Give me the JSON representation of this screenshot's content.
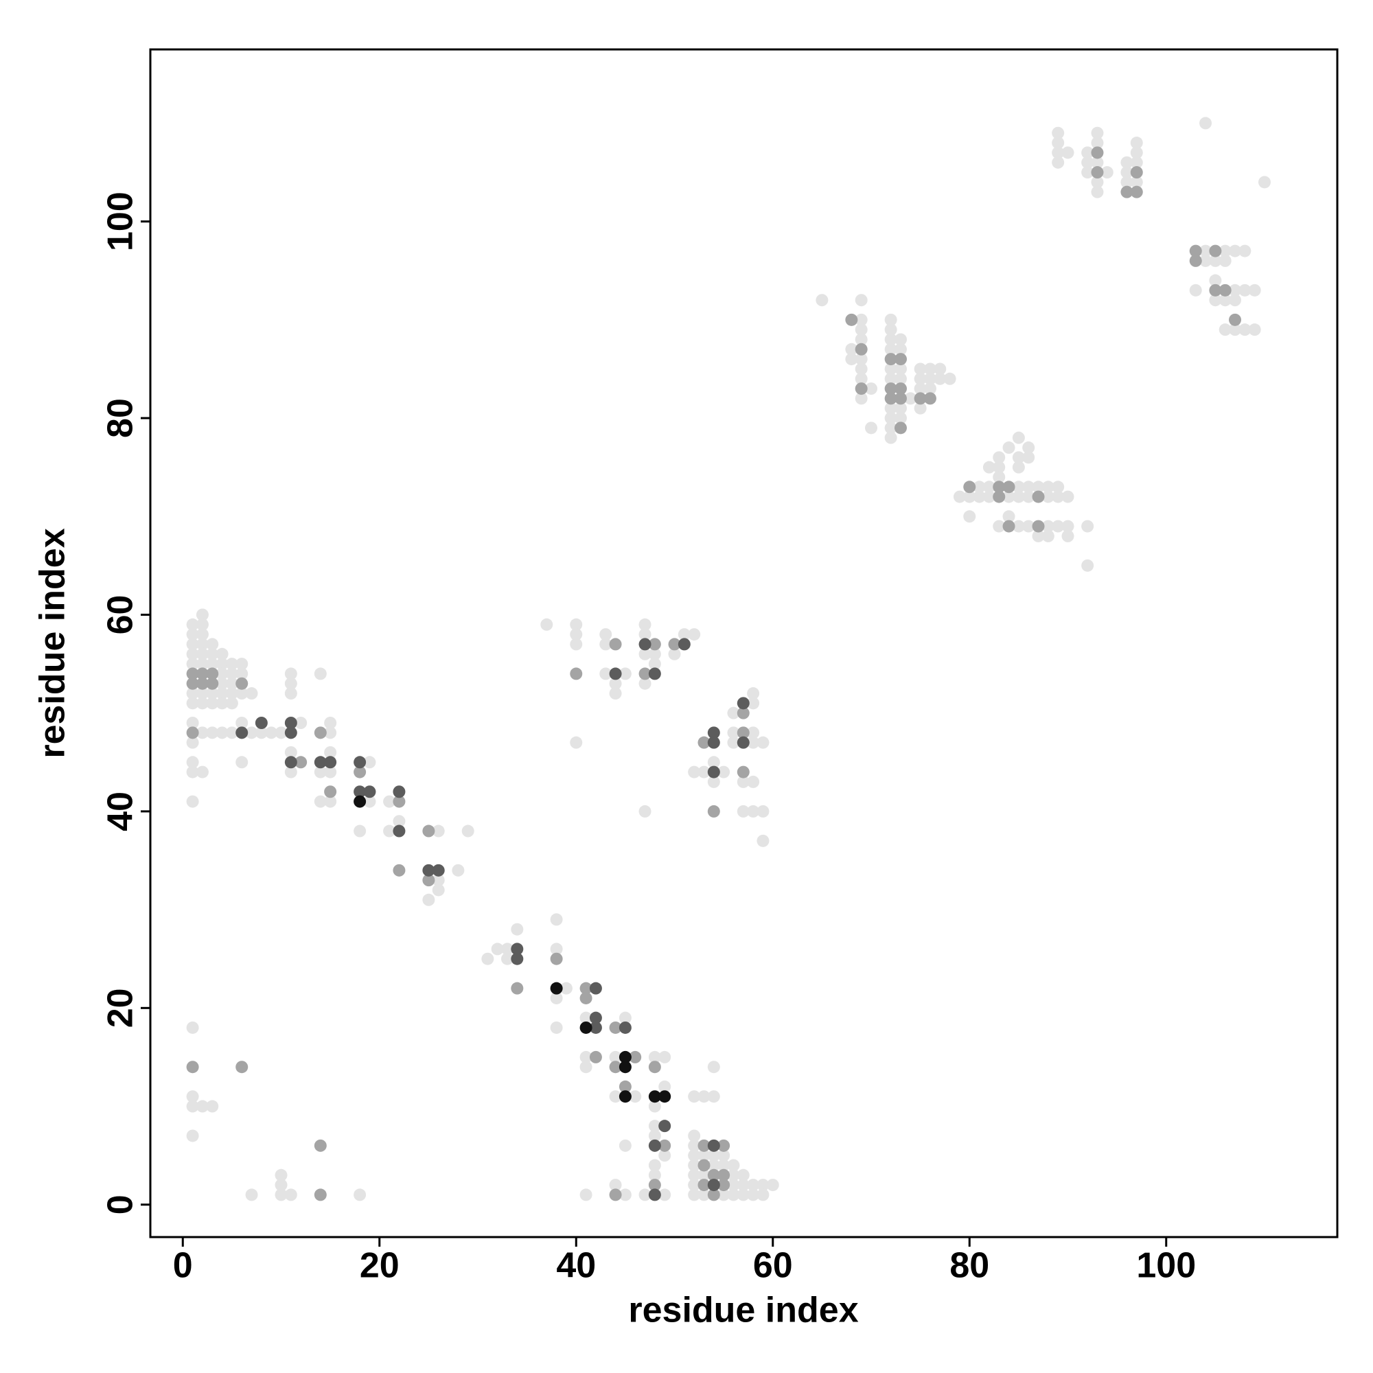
{
  "chart_data": {
    "type": "scatter",
    "x_label": "residue index",
    "y_label": "residue index",
    "xlim": [
      -3.3,
      117.4
    ],
    "ylim": [
      -3.3,
      117.5
    ],
    "xticks": [
      0,
      20,
      40,
      60,
      80,
      100
    ],
    "yticks": [
      0,
      20,
      40,
      60,
      80,
      100
    ],
    "series": [
      {
        "color": "#e3e3e3",
        "x": [
          1,
          1,
          1,
          1,
          1,
          1,
          1,
          1,
          1,
          1,
          1,
          1,
          2,
          2,
          2,
          2,
          2,
          2,
          2,
          2,
          2,
          2,
          3,
          3,
          3,
          3,
          3,
          3,
          4,
          4,
          4,
          4,
          4,
          4,
          4,
          5,
          5,
          5,
          5,
          5,
          5,
          6,
          6,
          6,
          6,
          6,
          7,
          7,
          8,
          9,
          10,
          11,
          11,
          11,
          11,
          11,
          12,
          14,
          14,
          14,
          15,
          15,
          15,
          15,
          15,
          18,
          19,
          19,
          21,
          21,
          22,
          25,
          26,
          26,
          26,
          28,
          29,
          31,
          32,
          33,
          33,
          34,
          38,
          38,
          38,
          38,
          39,
          41,
          41,
          41,
          44,
          44,
          45,
          46,
          48,
          48,
          49,
          49,
          48,
          48,
          49,
          52,
          52,
          52,
          52,
          52,
          52,
          52,
          53,
          53,
          53,
          54,
          54,
          55,
          55,
          55,
          56,
          56,
          56,
          56,
          57,
          57,
          57,
          58,
          58,
          59,
          59,
          60,
          52,
          53,
          54,
          54,
          48,
          48,
          47,
          49,
          44,
          45,
          45,
          41,
          1,
          1,
          1,
          2,
          3,
          1,
          7,
          10,
          10,
          10,
          11,
          18,
          37,
          40,
          40,
          40,
          40,
          43,
          43,
          43,
          44,
          44,
          45,
          47,
          47,
          47,
          47,
          48,
          48,
          50,
          51,
          52,
          47,
          52,
          53,
          54,
          54,
          56,
          56,
          56,
          55,
          57,
          57,
          58,
          58,
          58,
          58,
          58,
          58,
          59,
          59,
          59,
          65,
          68,
          68,
          69,
          69,
          69,
          69,
          69,
          69,
          69,
          69,
          70,
          70,
          72,
          72,
          72,
          72,
          72,
          72,
          72,
          72,
          72,
          72,
          73,
          73,
          73,
          73,
          73,
          73,
          74,
          75,
          75,
          75,
          75,
          76,
          76,
          76,
          77,
          77,
          78,
          79,
          80,
          80,
          81,
          81,
          82,
          82,
          82,
          83,
          83,
          83,
          83,
          84,
          84,
          84,
          85,
          85,
          85,
          85,
          85,
          85,
          86,
          86,
          86,
          86,
          86,
          87,
          87,
          88,
          88,
          88,
          88,
          89,
          89,
          89,
          90,
          90,
          90,
          92,
          92,
          89,
          89,
          89,
          89,
          90,
          92,
          92,
          92,
          93,
          93,
          93,
          93,
          93,
          94,
          96,
          96,
          96,
          97,
          97,
          97,
          97,
          104,
          110,
          103,
          104,
          104,
          105,
          105,
          105,
          106,
          106,
          106,
          106,
          107,
          107,
          107,
          107,
          108,
          108,
          108,
          109,
          109
        ],
        "y": [
          59,
          58,
          57,
          56,
          55,
          52,
          51,
          49,
          47,
          45,
          44,
          41,
          60,
          59,
          58,
          57,
          56,
          55,
          52,
          51,
          48,
          44,
          57,
          56,
          55,
          52,
          51,
          48,
          56,
          55,
          54,
          53,
          52,
          51,
          48,
          55,
          54,
          53,
          52,
          51,
          48,
          55,
          54,
          52,
          49,
          45,
          52,
          48,
          48,
          48,
          48,
          54,
          53,
          52,
          46,
          44,
          49,
          54,
          44,
          41,
          49,
          48,
          46,
          44,
          41,
          38,
          45,
          41,
          41,
          38,
          39,
          31,
          38,
          33,
          32,
          34,
          38,
          25,
          26,
          26,
          25,
          28,
          29,
          26,
          21,
          18,
          22,
          19,
          15,
          14,
          15,
          11,
          19,
          11,
          15,
          10,
          15,
          12,
          8,
          7,
          5,
          7,
          6,
          5,
          4,
          3,
          2,
          1,
          5,
          3,
          1,
          5,
          4,
          5,
          4,
          1,
          4,
          3,
          2,
          1,
          3,
          2,
          1,
          2,
          1,
          2,
          1,
          2,
          11,
          11,
          11,
          14,
          4,
          3,
          1,
          1,
          2,
          1,
          6,
          1,
          18,
          11,
          10,
          10,
          10,
          7,
          1,
          3,
          2,
          1,
          1,
          1,
          59,
          59,
          58,
          57,
          47,
          58,
          57,
          54,
          53,
          52,
          54,
          59,
          58,
          56,
          53,
          56,
          55,
          56,
          58,
          58,
          40,
          44,
          44,
          45,
          43,
          48,
          47,
          50,
          44,
          43,
          40,
          52,
          51,
          48,
          47,
          43,
          40,
          47,
          40,
          37,
          92,
          87,
          86,
          92,
          90,
          89,
          88,
          86,
          85,
          84,
          82,
          83,
          79,
          90,
          89,
          88,
          87,
          85,
          84,
          81,
          80,
          79,
          78,
          88,
          87,
          85,
          84,
          81,
          80,
          82,
          85,
          84,
          83,
          81,
          85,
          84,
          83,
          85,
          84,
          84,
          72,
          72,
          70,
          73,
          72,
          75,
          73,
          72,
          76,
          75,
          74,
          69,
          77,
          72,
          70,
          78,
          76,
          75,
          73,
          72,
          69,
          77,
          76,
          73,
          72,
          69,
          73,
          68,
          73,
          72,
          69,
          68,
          73,
          72,
          69,
          72,
          69,
          68,
          69,
          65,
          109,
          108,
          107,
          106,
          107,
          107,
          106,
          105,
          109,
          108,
          106,
          104,
          103,
          105,
          106,
          105,
          104,
          108,
          107,
          106,
          104,
          110,
          104,
          93,
          97,
          96,
          96,
          94,
          92,
          97,
          96,
          92,
          89,
          97,
          93,
          92,
          89,
          97,
          93,
          89,
          93,
          89
        ]
      },
      {
        "color": "#a4a4a4",
        "x": [
          1,
          1,
          1,
          2,
          2,
          3,
          3,
          6,
          14,
          12,
          15,
          18,
          22,
          22,
          25,
          25,
          34,
          38,
          41,
          41,
          42,
          44,
          44,
          45,
          46,
          48,
          49,
          53,
          53,
          53,
          54,
          54,
          55,
          55,
          55,
          48,
          44,
          1,
          6,
          14,
          14,
          40,
          44,
          47,
          48,
          50,
          53,
          54,
          57,
          57,
          57,
          68,
          69,
          69,
          72,
          72,
          72,
          73,
          73,
          73,
          73,
          75,
          76,
          80,
          83,
          83,
          84,
          84,
          87,
          87,
          93,
          93,
          96,
          97,
          97,
          103,
          103,
          105,
          105,
          106,
          107
        ],
        "y": [
          54,
          53,
          48,
          54,
          53,
          53,
          54,
          53,
          48,
          45,
          42,
          44,
          41,
          34,
          38,
          33,
          22,
          25,
          22,
          21,
          15,
          18,
          14,
          12,
          15,
          14,
          6,
          6,
          4,
          2,
          3,
          1,
          6,
          3,
          2,
          2,
          1,
          14,
          14,
          6,
          1,
          54,
          57,
          54,
          57,
          57,
          47,
          40,
          50,
          48,
          44,
          90,
          87,
          83,
          86,
          83,
          82,
          86,
          83,
          82,
          79,
          82,
          82,
          73,
          73,
          72,
          73,
          69,
          72,
          69,
          107,
          105,
          103,
          105,
          103,
          97,
          96,
          97,
          93,
          93,
          90
        ]
      },
      {
        "color": "#5c5c5c",
        "x": [
          6,
          8,
          11,
          11,
          11,
          14,
          15,
          18,
          18,
          19,
          22,
          22,
          25,
          26,
          34,
          34,
          42,
          42,
          42,
          45,
          49,
          48,
          48,
          54,
          54,
          44,
          47,
          48,
          51,
          54,
          54,
          54,
          57,
          57
        ],
        "y": [
          48,
          49,
          48,
          49,
          45,
          45,
          45,
          45,
          42,
          42,
          42,
          38,
          34,
          34,
          26,
          25,
          22,
          19,
          18,
          18,
          8,
          6,
          1,
          6,
          2,
          54,
          57,
          54,
          57,
          48,
          47,
          44,
          51,
          47
        ]
      },
      {
        "color": "#111111",
        "x": [
          18,
          38,
          41,
          45,
          45,
          45,
          48,
          49
        ],
        "y": [
          41,
          22,
          18,
          15,
          14,
          11,
          11,
          11
        ]
      }
    ]
  }
}
